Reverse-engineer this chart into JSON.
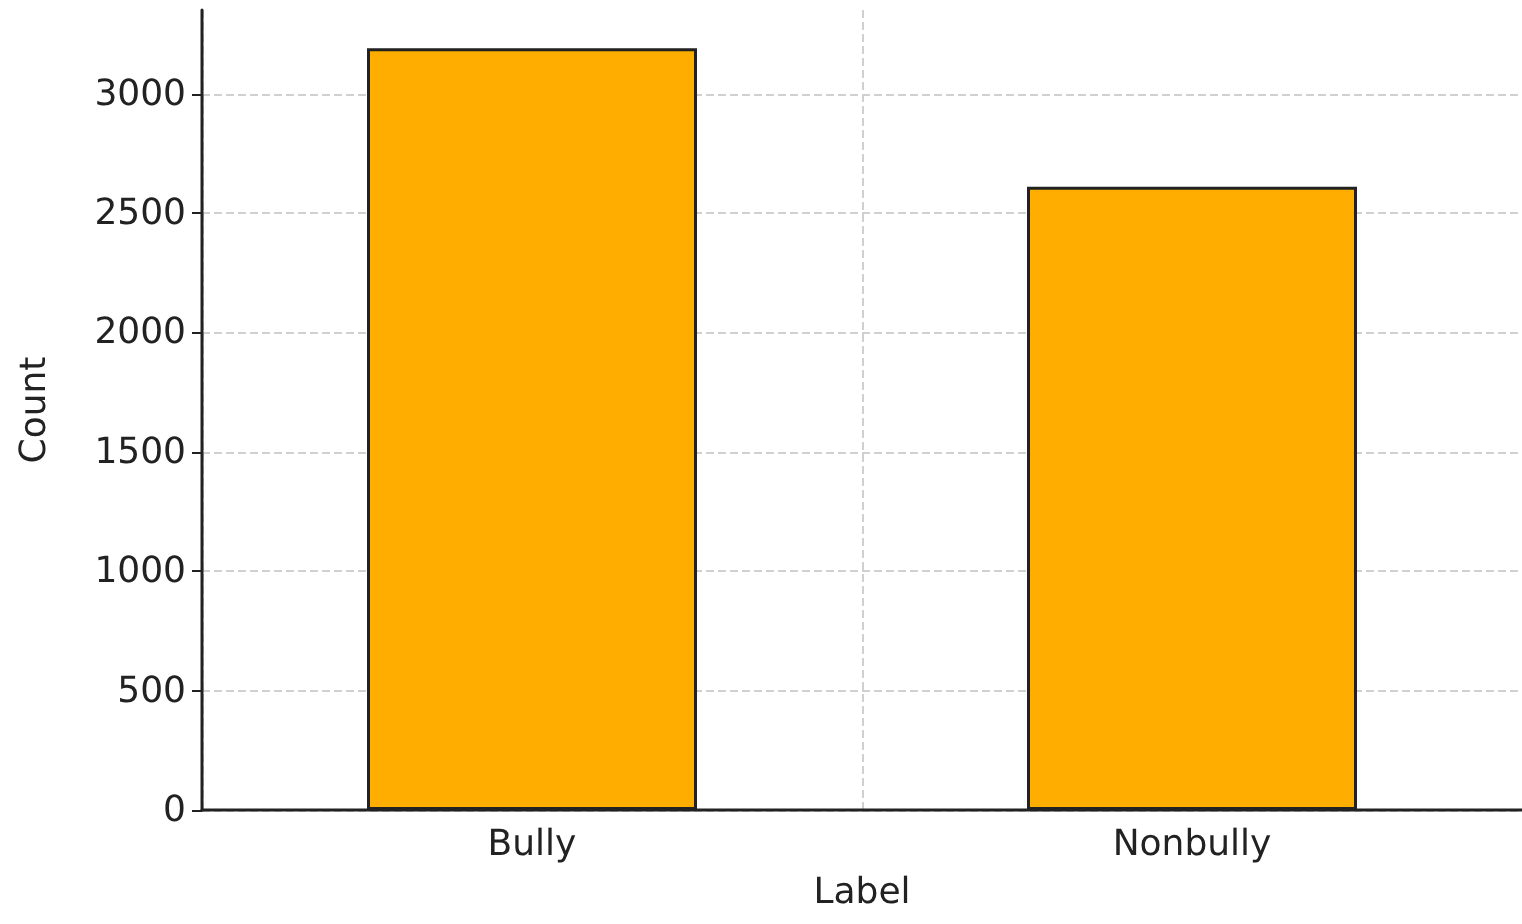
{
  "chart_data": {
    "type": "bar",
    "xlabel": "Label",
    "ylabel": "Count",
    "categories": [
      "Bully",
      "Nonbully"
    ],
    "values": [
      3190,
      2610
    ],
    "color": "#ffae00",
    "ylim": [
      0,
      3350
    ],
    "yticks": [
      0,
      500,
      1000,
      1500,
      2000,
      2500,
      3000
    ],
    "grid": true
  }
}
